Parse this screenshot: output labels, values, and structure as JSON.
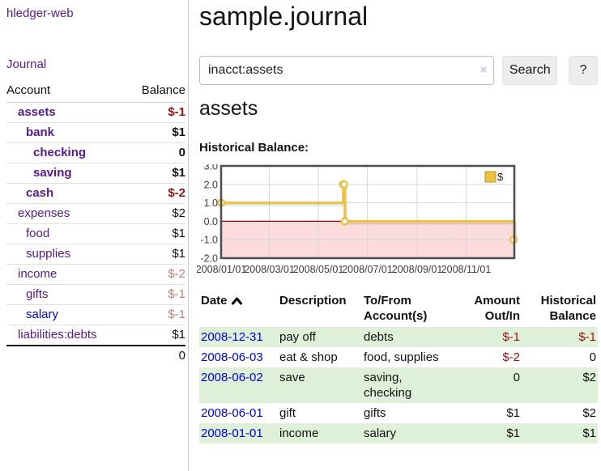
{
  "app_title": "hledger-web",
  "sidebar": {
    "journal_link": "Journal",
    "accounts_table": {
      "account_header": "Account",
      "balance_header": "Balance",
      "rows": [
        {
          "name": "assets",
          "balance": "$-1",
          "indent": 1,
          "bold": true,
          "name_color": "purple",
          "balance_color": "neg-strong"
        },
        {
          "name": "bank",
          "balance": "$1",
          "indent": 2,
          "bold": true,
          "name_color": "purple",
          "balance_color": "pos"
        },
        {
          "name": "checking",
          "balance": "0",
          "indent": 3,
          "bold": true,
          "name_color": "purple",
          "balance_color": "pos"
        },
        {
          "name": "saving",
          "balance": "$1",
          "indent": 3,
          "bold": true,
          "name_color": "purple",
          "balance_color": "pos"
        },
        {
          "name": "cash",
          "balance": "$-2",
          "indent": 2,
          "bold": true,
          "name_color": "purple",
          "balance_color": "neg-strong"
        },
        {
          "name": "expenses",
          "balance": "$2",
          "indent": 1,
          "bold": false,
          "name_color": "purple",
          "balance_color": "pos"
        },
        {
          "name": "food",
          "balance": "$1",
          "indent": 2,
          "bold": false,
          "name_color": "purple",
          "balance_color": "pos"
        },
        {
          "name": "supplies",
          "balance": "$1",
          "indent": 2,
          "bold": false,
          "name_color": "purple",
          "balance_color": "pos"
        },
        {
          "name": "income",
          "balance": "$-2",
          "indent": 1,
          "bold": false,
          "name_color": "purple",
          "balance_color": "neg-soft"
        },
        {
          "name": "gifts",
          "balance": "$-1",
          "indent": 2,
          "bold": false,
          "name_color": "purple",
          "balance_color": "neg-soft"
        },
        {
          "name": "salary",
          "balance": "$-1",
          "indent": 2,
          "bold": false,
          "name_color": "blue",
          "balance_color": "neg-soft"
        },
        {
          "name": "liabilities:debts",
          "balance": "$1",
          "indent": 1,
          "bold": false,
          "name_color": "purple",
          "balance_color": "pos"
        }
      ],
      "total": "0"
    }
  },
  "main": {
    "title": "sample.journal",
    "search": {
      "value": "inacct:assets",
      "clear_icon": "×",
      "search_button": "Search",
      "help_button": "?"
    },
    "account_heading": "assets",
    "section_label": "Historical Balance:"
  },
  "chart_data": {
    "type": "line",
    "step": true,
    "title": "Historical Balance",
    "legend": "$",
    "legend_position": "top-right",
    "series": [
      {
        "name": "$",
        "points": [
          [
            "2008-01-01",
            1
          ],
          [
            "2008-06-01",
            2
          ],
          [
            "2008-06-02",
            2
          ],
          [
            "2008-06-03",
            0
          ],
          [
            "2008-12-31",
            -1
          ]
        ]
      }
    ],
    "x_tick_labels": [
      "2008/01/01",
      "2008/03/01",
      "2008/05/01",
      "2008/07/01",
      "2008/09/01",
      "2008/11/01"
    ],
    "y_tick_labels": [
      "3.0",
      "2.0",
      "1.0",
      "0.0",
      "-1.0",
      "-2.0"
    ],
    "y_ticks": [
      3,
      2,
      1,
      0,
      -1,
      -2
    ],
    "ylim": [
      -2,
      3
    ],
    "grid": true,
    "colors": {
      "line": "#edc240",
      "marker_fill": "#ffffff",
      "negative_region": "#fbdbdb",
      "zero_line": "#8b0000",
      "grid": "#d8d8d8",
      "border": "#4d4d4d",
      "tick_text": "#3c3c3c"
    }
  },
  "register": {
    "headers": {
      "date": "Date",
      "description": "Description",
      "account": "To/From Account(s)",
      "amount": "Amount Out/In",
      "balance": "Historical Balance"
    },
    "rows": [
      {
        "date": "2008-12-31",
        "description": "pay off",
        "account": "debts",
        "amount": "$-1",
        "balance": "$-1",
        "amount_neg": true,
        "balance_neg": true
      },
      {
        "date": "2008-06-03",
        "description": "eat & shop",
        "account": "food, supplies",
        "amount": "$-2",
        "balance": "0",
        "amount_neg": true,
        "balance_neg": false
      },
      {
        "date": "2008-06-02",
        "description": "save",
        "account": "saving, checking",
        "amount": "0",
        "balance": "$2",
        "amount_neg": false,
        "balance_neg": false
      },
      {
        "date": "2008-06-01",
        "description": "gift",
        "account": "gifts",
        "amount": "$1",
        "balance": "$2",
        "amount_neg": false,
        "balance_neg": false
      },
      {
        "date": "2008-01-01",
        "description": "income",
        "account": "salary",
        "amount": "$1",
        "balance": "$1",
        "amount_neg": false,
        "balance_neg": false
      }
    ]
  }
}
